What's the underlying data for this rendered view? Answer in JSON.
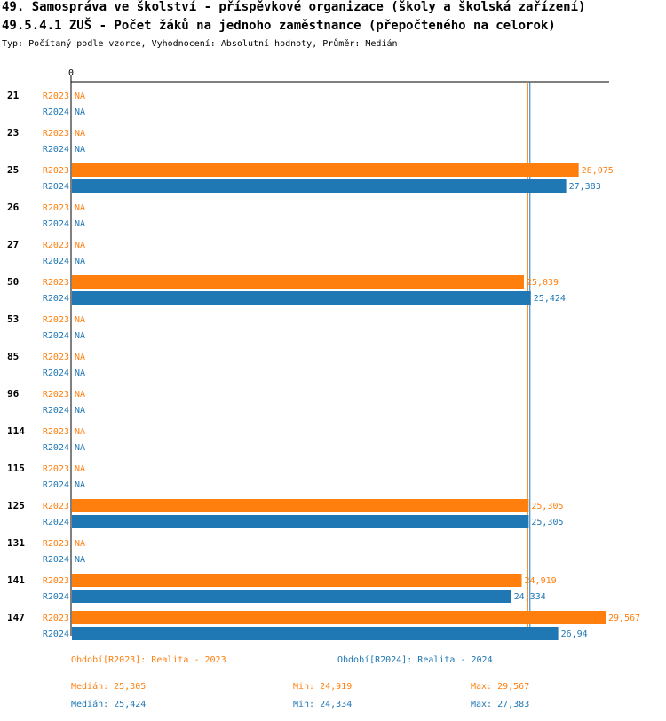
{
  "header": {
    "title_line1": "49. Samospráva ve školství - příspěvkové organizace (školy a školská zařízení)",
    "title_line2": "49.5.4.1 ZUŠ - Počet žáků na jednoho zaměstnance (přepočteného na celorok)",
    "subtitle": "Typ: Počítaný podle vzorce, Vyhodnocení: Absolutní hodnoty, Průměr: Medián"
  },
  "colors": {
    "r2023": "#ff7f0e",
    "r2024": "#1f77b4"
  },
  "chart_data": {
    "type": "bar",
    "orientation": "horizontal",
    "x_tick_label": "0",
    "xlim": [
      0,
      29.567
    ],
    "missing_label": "NA",
    "categories": [
      "21",
      "23",
      "25",
      "26",
      "27",
      "50",
      "53",
      "85",
      "96",
      "114",
      "115",
      "125",
      "131",
      "141",
      "147"
    ],
    "series": [
      {
        "name": "R2023",
        "values": [
          null,
          null,
          28.075,
          null,
          null,
          25.039,
          null,
          null,
          null,
          null,
          null,
          25.305,
          null,
          24.919,
          29.567
        ],
        "labels": [
          "NA",
          "NA",
          "28,075",
          "NA",
          "NA",
          "25,039",
          "NA",
          "NA",
          "NA",
          "NA",
          "NA",
          "25,305",
          "NA",
          "24,919",
          "29,567"
        ]
      },
      {
        "name": "R2024",
        "values": [
          null,
          null,
          27.383,
          null,
          null,
          25.424,
          null,
          null,
          null,
          null,
          null,
          25.305,
          null,
          24.334,
          26.94
        ],
        "labels": [
          "NA",
          "NA",
          "27,383",
          "NA",
          "NA",
          "25,424",
          "NA",
          "NA",
          "NA",
          "NA",
          "NA",
          "25,305",
          "NA",
          "24,334",
          "26,94"
        ]
      }
    ],
    "reference_lines": [
      {
        "series": "R2023",
        "value": 25.305
      },
      {
        "series": "R2024",
        "value": 25.424
      }
    ]
  },
  "legend": {
    "r2023": "Období[R2023]: Realita - 2023",
    "r2024": "Období[R2024]: Realita - 2024"
  },
  "stats": {
    "r2023": {
      "median": "Medián: 25,305",
      "min": "Min: 24,919",
      "max": "Max: 29,567"
    },
    "r2024": {
      "median": "Medián: 25,424",
      "min": "Min: 24,334",
      "max": "Max: 27,383"
    }
  }
}
